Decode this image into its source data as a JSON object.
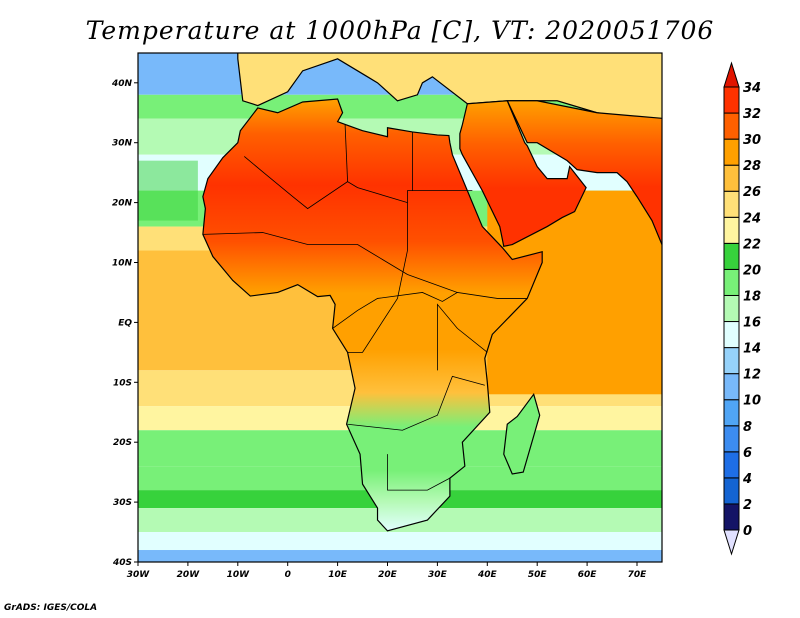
{
  "title": "Temperature at 1000hPa [C], VT: 2020051706",
  "credit": "GrADS: IGES/COLA",
  "map": {
    "variable": "Temperature at 1000hPa",
    "units": "C",
    "valid_time": "2020051706",
    "lon_range": [
      -30,
      75
    ],
    "lat_range": [
      -40,
      45
    ],
    "x_ticks": [
      "30W",
      "20W",
      "10W",
      "0",
      "10E",
      "20E",
      "30E",
      "40E",
      "50E",
      "60E",
      "70E"
    ],
    "y_ticks": [
      "40S",
      "30S",
      "20S",
      "10S",
      "EQ",
      "10N",
      "20N",
      "30N",
      "40N"
    ]
  },
  "colorbar": {
    "levels": [
      "0",
      "2",
      "4",
      "6",
      "8",
      "10",
      "12",
      "14",
      "16",
      "18",
      "20",
      "22",
      "24",
      "26",
      "28",
      "30",
      "32",
      "34"
    ],
    "colors": [
      "#141466",
      "#1464d2",
      "#1e6ee6",
      "#3c8cf0",
      "#50a5f5",
      "#78b9fa",
      "#96d2fa",
      "#e1ffff",
      "#b4fab4",
      "#78f078",
      "#37d23c",
      "#fff5a0",
      "#ffe078",
      "#ffc03c",
      "#ffa000",
      "#ff6000",
      "#ff3200",
      "#e11400"
    ],
    "under_color": "#e1e1ff",
    "over_color": "#e11400"
  }
}
